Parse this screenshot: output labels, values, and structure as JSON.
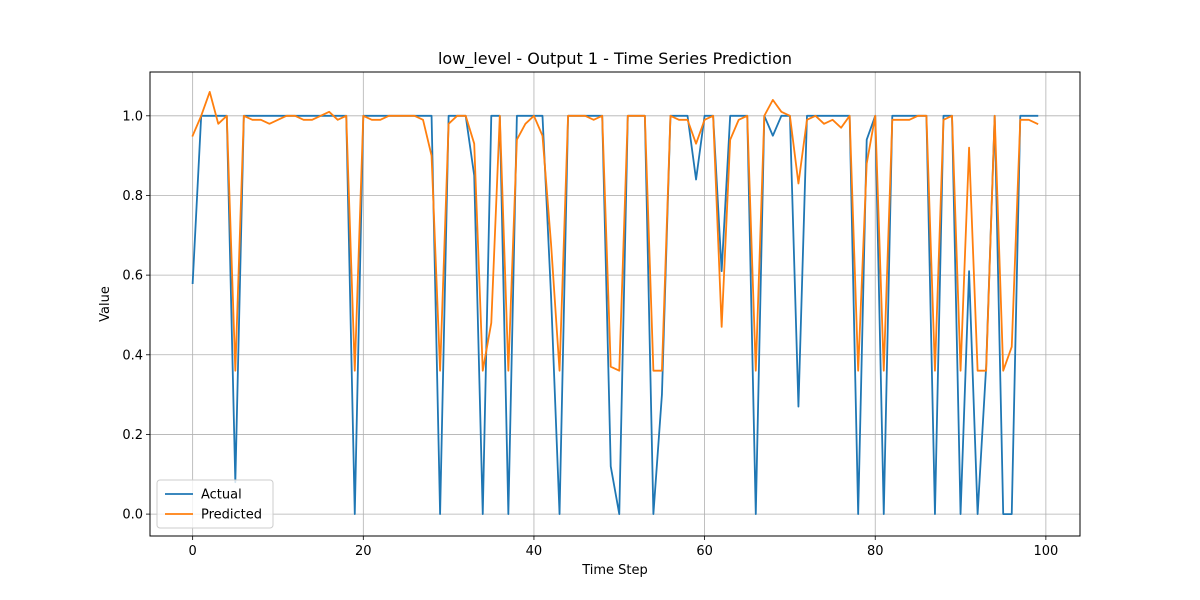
{
  "chart_data": {
    "type": "line",
    "title": "low_level - Output 1 - Time Series Prediction",
    "xlabel": "Time Step",
    "ylabel": "Value",
    "xlim": [
      -5,
      104
    ],
    "ylim": [
      -0.055,
      1.11
    ],
    "xticks": [
      0,
      20,
      40,
      60,
      80,
      100
    ],
    "yticks": [
      0.0,
      0.2,
      0.4,
      0.6,
      0.8,
      1.0
    ],
    "xtick_labels": [
      "0",
      "20",
      "40",
      "60",
      "80",
      "100"
    ],
    "ytick_labels": [
      "0.0",
      "0.2",
      "0.4",
      "0.6",
      "0.8",
      "1.0"
    ],
    "grid": true,
    "legend_position": "lower-left",
    "x": [
      0,
      1,
      2,
      3,
      4,
      5,
      6,
      7,
      8,
      9,
      10,
      11,
      12,
      13,
      14,
      15,
      16,
      17,
      18,
      19,
      20,
      21,
      22,
      23,
      24,
      25,
      26,
      27,
      28,
      29,
      30,
      31,
      32,
      33,
      34,
      35,
      36,
      37,
      38,
      39,
      40,
      41,
      42,
      43,
      44,
      45,
      46,
      47,
      48,
      49,
      50,
      51,
      52,
      53,
      54,
      55,
      56,
      57,
      58,
      59,
      60,
      61,
      62,
      63,
      64,
      65,
      66,
      67,
      68,
      69,
      70,
      71,
      72,
      73,
      74,
      75,
      76,
      77,
      78,
      79,
      80,
      81,
      82,
      83,
      84,
      85,
      86,
      87,
      88,
      89,
      90,
      91,
      92,
      93,
      94,
      95,
      96,
      97,
      98,
      99
    ],
    "series": [
      {
        "name": "Actual",
        "color": "#1f77b4",
        "values": [
          0.58,
          1.0,
          1.0,
          1.0,
          1.0,
          0.08,
          1.0,
          1.0,
          1.0,
          1.0,
          1.0,
          1.0,
          1.0,
          1.0,
          1.0,
          1.0,
          1.0,
          1.0,
          1.0,
          0.0,
          1.0,
          1.0,
          1.0,
          1.0,
          1.0,
          1.0,
          1.0,
          1.0,
          1.0,
          0.0,
          1.0,
          1.0,
          1.0,
          0.85,
          0.0,
          1.0,
          1.0,
          0.0,
          1.0,
          1.0,
          1.0,
          1.0,
          0.55,
          0.0,
          1.0,
          1.0,
          1.0,
          1.0,
          1.0,
          0.12,
          0.0,
          1.0,
          1.0,
          1.0,
          0.0,
          0.3,
          1.0,
          1.0,
          1.0,
          0.84,
          1.0,
          1.0,
          0.61,
          1.0,
          1.0,
          1.0,
          0.0,
          1.0,
          0.95,
          1.0,
          1.0,
          0.27,
          1.0,
          1.0,
          1.0,
          1.0,
          1.0,
          1.0,
          0.0,
          0.94,
          1.0,
          0.0,
          1.0,
          1.0,
          1.0,
          1.0,
          1.0,
          0.0,
          1.0,
          1.0,
          0.0,
          0.61,
          0.0,
          0.37,
          1.0,
          0.0,
          0.0,
          1.0,
          1.0,
          1.0
        ]
      },
      {
        "name": "Predicted",
        "color": "#ff7f0e",
        "values": [
          0.95,
          1.0,
          1.06,
          0.98,
          1.0,
          0.36,
          1.0,
          0.99,
          0.99,
          0.98,
          0.99,
          1.0,
          1.0,
          0.99,
          0.99,
          1.0,
          1.01,
          0.99,
          1.0,
          0.36,
          1.0,
          0.99,
          0.99,
          1.0,
          1.0,
          1.0,
          1.0,
          0.99,
          0.9,
          0.36,
          0.98,
          1.0,
          1.0,
          0.93,
          0.36,
          0.48,
          1.0,
          0.36,
          0.94,
          0.98,
          1.0,
          0.95,
          0.68,
          0.36,
          1.0,
          1.0,
          1.0,
          0.99,
          1.0,
          0.37,
          0.36,
          1.0,
          1.0,
          1.0,
          0.36,
          0.36,
          1.0,
          0.99,
          0.99,
          0.93,
          0.99,
          1.0,
          0.47,
          0.94,
          0.99,
          1.0,
          0.36,
          1.0,
          1.04,
          1.01,
          1.0,
          0.83,
          0.99,
          1.0,
          0.98,
          0.99,
          0.97,
          1.0,
          0.36,
          0.88,
          1.0,
          0.36,
          0.99,
          0.99,
          0.99,
          1.0,
          1.0,
          0.36,
          0.99,
          1.0,
          0.36,
          0.92,
          0.36,
          0.36,
          1.0,
          0.36,
          0.42,
          0.99,
          0.99,
          0.98
        ]
      }
    ]
  }
}
